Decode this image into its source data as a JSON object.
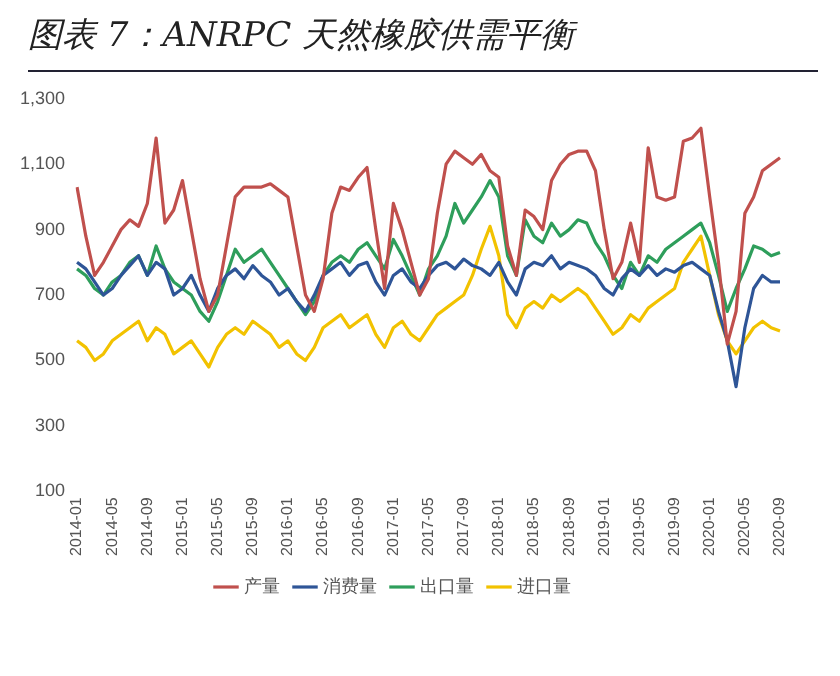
{
  "chart_data": {
    "type": "line",
    "title": "图表 7：ANRPC 天然橡胶供需平衡",
    "categories": [
      "2014-01",
      null,
      null,
      null,
      "2014-05",
      null,
      null,
      null,
      "2014-09",
      null,
      null,
      null,
      "2015-01",
      null,
      null,
      null,
      "2015-05",
      null,
      null,
      null,
      "2015-09",
      null,
      null,
      null,
      "2016-01",
      null,
      null,
      null,
      "2016-05",
      null,
      null,
      null,
      "2016-09",
      null,
      null,
      null,
      "2017-01",
      null,
      null,
      null,
      "2017-05",
      null,
      null,
      null,
      "2017-09",
      null,
      null,
      null,
      "2018-01",
      null,
      null,
      null,
      "2018-05",
      null,
      null,
      null,
      "2018-09",
      null,
      null,
      null,
      "2019-01",
      null,
      null,
      null,
      "2019-05",
      null,
      null,
      null,
      "2019-09",
      null,
      null,
      null,
      "2020-01",
      null,
      null,
      null,
      "2020-05",
      null,
      null,
      null,
      "2020-09"
    ],
    "series": [
      {
        "name": "产量",
        "color": "#c0504d",
        "values": [
          1030,
          880,
          760,
          800,
          850,
          900,
          930,
          910,
          980,
          1180,
          920,
          960,
          1050,
          900,
          750,
          650,
          700,
          850,
          1000,
          1030,
          1030,
          1030,
          1040,
          1020,
          1000,
          850,
          700,
          650,
          750,
          950,
          1030,
          1020,
          1060,
          1090,
          900,
          720,
          980,
          900,
          800,
          700,
          750,
          950,
          1100,
          1140,
          1120,
          1100,
          1130,
          1080,
          1060,
          850,
          760,
          960,
          940,
          900,
          1050,
          1100,
          1130,
          1140,
          1140,
          1080,
          900,
          750,
          800,
          920,
          800,
          1150,
          1000,
          990,
          1000,
          1170,
          1180,
          1210,
          1000,
          800,
          550,
          650,
          950,
          1000,
          1080,
          1100,
          1120
        ]
      },
      {
        "name": "消费量",
        "color": "#2e5597",
        "values": [
          800,
          780,
          740,
          700,
          720,
          760,
          790,
          820,
          760,
          800,
          780,
          700,
          720,
          760,
          700,
          650,
          720,
          760,
          780,
          750,
          790,
          760,
          740,
          700,
          720,
          680,
          650,
          700,
          760,
          780,
          800,
          760,
          790,
          800,
          740,
          700,
          760,
          780,
          740,
          720,
          760,
          790,
          800,
          780,
          810,
          790,
          780,
          760,
          800,
          740,
          700,
          780,
          800,
          790,
          820,
          780,
          800,
          790,
          780,
          760,
          720,
          700,
          750,
          780,
          760,
          790,
          760,
          780,
          770,
          790,
          800,
          780,
          760,
          650,
          560,
          420,
          600,
          720,
          760,
          740,
          740
        ]
      },
      {
        "name": "出口量",
        "color": "#2e9e5b",
        "values": [
          780,
          760,
          720,
          700,
          740,
          760,
          800,
          820,
          760,
          850,
          780,
          740,
          720,
          700,
          650,
          620,
          680,
          760,
          840,
          800,
          820,
          840,
          800,
          760,
          720,
          680,
          640,
          680,
          760,
          800,
          820,
          800,
          840,
          860,
          820,
          780,
          870,
          820,
          760,
          700,
          780,
          820,
          880,
          980,
          920,
          960,
          1000,
          1050,
          1000,
          820,
          760,
          930,
          880,
          860,
          920,
          880,
          900,
          930,
          920,
          860,
          820,
          760,
          720,
          800,
          760,
          820,
          800,
          840,
          860,
          880,
          900,
          920,
          860,
          760,
          650,
          720,
          780,
          850,
          840,
          820,
          830
        ]
      },
      {
        "name": "进口量",
        "color": "#f2c200",
        "values": [
          560,
          540,
          500,
          520,
          560,
          580,
          600,
          620,
          560,
          600,
          580,
          520,
          540,
          560,
          520,
          480,
          540,
          580,
          600,
          580,
          620,
          600,
          580,
          540,
          560,
          520,
          500,
          540,
          600,
          620,
          640,
          600,
          620,
          640,
          580,
          540,
          600,
          620,
          580,
          560,
          600,
          640,
          660,
          680,
          700,
          760,
          840,
          910,
          820,
          640,
          600,
          660,
          680,
          660,
          700,
          680,
          700,
          720,
          700,
          660,
          620,
          580,
          600,
          640,
          620,
          660,
          680,
          700,
          720,
          800,
          840,
          880,
          760,
          640,
          560,
          520,
          560,
          600,
          620,
          600,
          590
        ]
      }
    ],
    "ylim": [
      100,
      1300
    ],
    "yticks": [
      100,
      300,
      500,
      700,
      900,
      {
        "value": 1100,
        "label": "1,100"
      },
      {
        "value": 1300,
        "label": "1,300"
      }
    ],
    "grid": false,
    "legend": "bottom",
    "marker": "none",
    "line_style": "solid"
  }
}
